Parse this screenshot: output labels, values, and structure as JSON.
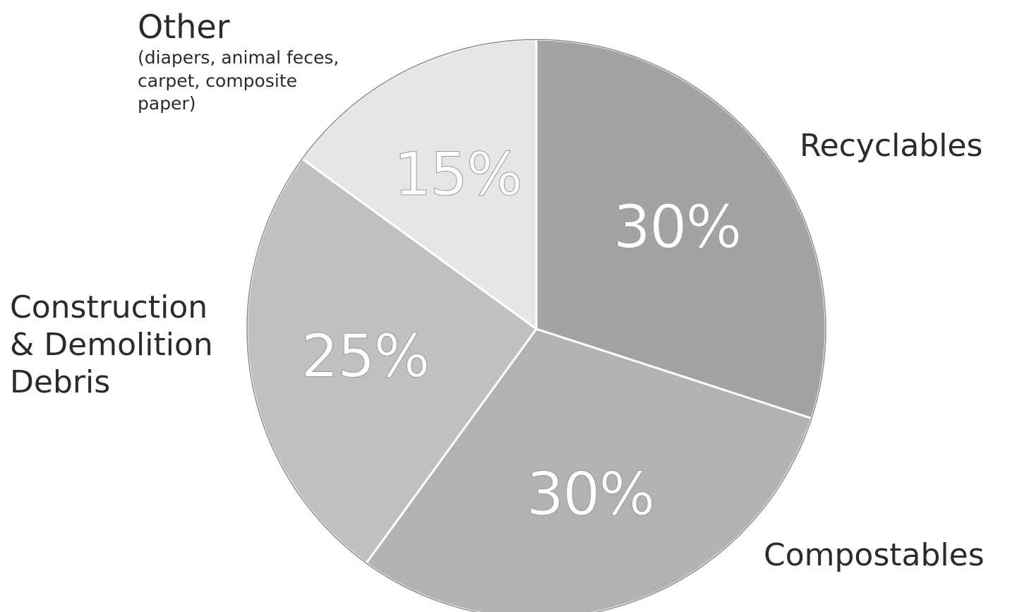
{
  "chart_data": {
    "type": "pie",
    "slices": [
      {
        "key": "recyclables",
        "label": "Recyclables",
        "note": "",
        "value": 30,
        "value_label": "30%",
        "color": "#a3a3a3"
      },
      {
        "key": "compostables",
        "label": "Compostables",
        "note": "",
        "value": 30,
        "value_label": "30%",
        "color": "#b2b2b2"
      },
      {
        "key": "construction",
        "label": "Construction\n& Demolition\nDebris",
        "note": "",
        "value": 25,
        "value_label": "25%",
        "color": "#c0c0c0"
      },
      {
        "key": "other",
        "label": "Other",
        "note": "(diapers, animal feces,\ncarpet, composite\npaper)",
        "value": 15,
        "value_label": "15%",
        "color": "#e6e6e6"
      }
    ]
  }
}
